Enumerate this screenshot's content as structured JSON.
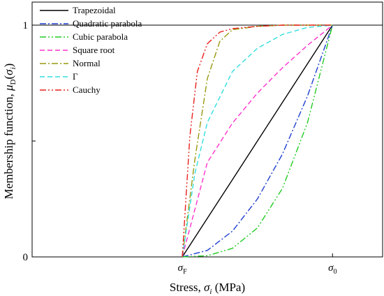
{
  "chart_data": {
    "type": "line",
    "xlabel": {
      "main": "Stress, ",
      "symbol": "σ",
      "sub": "i",
      "unit": " (MPa)"
    },
    "ylabel": {
      "main": "Membership function, ",
      "symbol": "μ",
      "sub": "D",
      "paren_open": "(",
      "arg": "σ",
      "arg_sub": "i",
      "paren_close": ")"
    },
    "xlim": [
      0,
      1.4
    ],
    "ylim": [
      0,
      1
    ],
    "x_ticks": [
      {
        "value": 0.6,
        "symbol": "σ",
        "sub": "F"
      },
      {
        "value": 1.2,
        "symbol": "σ",
        "sub": "0"
      }
    ],
    "y_ticks": [
      {
        "value": 0,
        "label": "0"
      },
      {
        "value": 0.5,
        "label": ""
      },
      {
        "value": 1,
        "label": "1"
      }
    ],
    "legend_position": "top-left",
    "series": [
      {
        "name": "Trapezoidal",
        "color": "#000000",
        "dash": "solid",
        "x": [
          0.6,
          0.7,
          0.8,
          0.9,
          1.0,
          1.1,
          1.2
        ],
        "y": [
          0.0,
          0.167,
          0.333,
          0.5,
          0.667,
          0.833,
          1.0
        ]
      },
      {
        "name": "Quadratic parabola",
        "color": "#1f3fd0",
        "dash": "dash-dot",
        "x": [
          0.6,
          0.7,
          0.8,
          0.9,
          1.0,
          1.1,
          1.2
        ],
        "y": [
          0.0,
          0.028,
          0.111,
          0.25,
          0.444,
          0.694,
          1.0
        ]
      },
      {
        "name": "Cubic parabola",
        "color": "#22cc22",
        "dash": "dash-dot-dot",
        "x": [
          0.6,
          0.7,
          0.8,
          0.9,
          1.0,
          1.1,
          1.2
        ],
        "y": [
          0.0,
          0.005,
          0.037,
          0.125,
          0.296,
          0.579,
          1.0
        ]
      },
      {
        "name": "Square root",
        "color": "#ff33cc",
        "dash": "dash",
        "x": [
          0.6,
          0.7,
          0.8,
          0.9,
          1.0,
          1.1,
          1.2
        ],
        "y": [
          0.0,
          0.408,
          0.577,
          0.707,
          0.816,
          0.913,
          1.0
        ]
      },
      {
        "name": "Normal",
        "color": "#999911",
        "dash": "dash-dot",
        "x": [
          0.6,
          0.65,
          0.7,
          0.75,
          0.8,
          0.9,
          1.0,
          1.1,
          1.2
        ],
        "y": [
          0.0,
          0.42,
          0.77,
          0.93,
          0.98,
          0.995,
          1.0,
          1.0,
          1.0
        ]
      },
      {
        "name": "Γ",
        "color": "#33dddd",
        "dash": "dash",
        "x": [
          0.6,
          0.65,
          0.7,
          0.8,
          0.9,
          1.0,
          1.1,
          1.2
        ],
        "y": [
          0.0,
          0.36,
          0.58,
          0.8,
          0.9,
          0.96,
          0.99,
          1.0
        ]
      },
      {
        "name": "Cauchy",
        "color": "#e8211c",
        "dash": "dash-dot-dot",
        "x": [
          0.6,
          0.63,
          0.66,
          0.7,
          0.75,
          0.8,
          0.9,
          1.0,
          1.1,
          1.2
        ],
        "y": [
          0.0,
          0.52,
          0.8,
          0.92,
          0.97,
          0.985,
          0.995,
          1.0,
          1.0,
          1.0
        ]
      }
    ]
  }
}
